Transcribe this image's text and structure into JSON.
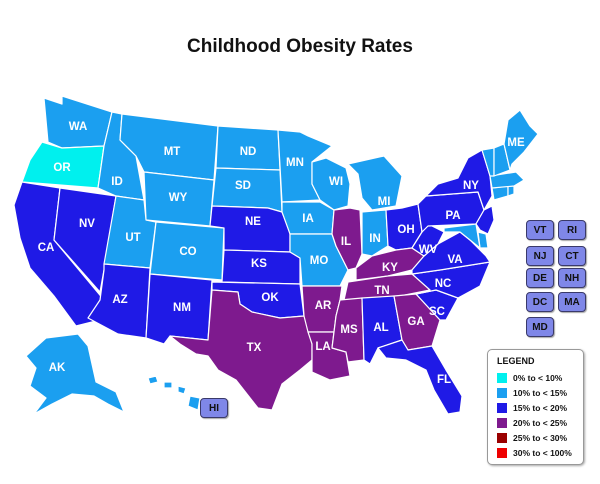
{
  "title": "Childhood Obesity Rates",
  "colors": {
    "c1": "#00f0ee",
    "c2": "#1b9ff0",
    "c3": "#1f1ae6",
    "c4": "#7e1a8e",
    "c5": "#9a0000",
    "c6": "#ee0000",
    "small_box": "#7f87e8"
  },
  "legend": {
    "title": "LEGEND",
    "items": [
      {
        "label": "0% to < 10%",
        "color": "#00f0ee"
      },
      {
        "label": "10% to < 15%",
        "color": "#1b9ff0"
      },
      {
        "label": "15% to < 20%",
        "color": "#1f1ae6"
      },
      {
        "label": "20% to < 25%",
        "color": "#7e1a8e"
      },
      {
        "label": "25% to < 30%",
        "color": "#9a0000"
      },
      {
        "label": "30% to < 100%",
        "color": "#ee0000"
      }
    ]
  },
  "states": {
    "WA": {
      "label": "WA",
      "bin": 2
    },
    "OR": {
      "label": "OR",
      "bin": 1
    },
    "CA": {
      "label": "CA",
      "bin": 3
    },
    "NV": {
      "label": "NV",
      "bin": 3
    },
    "ID": {
      "label": "ID",
      "bin": 2
    },
    "MT": {
      "label": "MT",
      "bin": 2
    },
    "WY": {
      "label": "WY",
      "bin": 2
    },
    "UT": {
      "label": "UT",
      "bin": 2
    },
    "CO": {
      "label": "CO",
      "bin": 2
    },
    "AZ": {
      "label": "AZ",
      "bin": 3
    },
    "NM": {
      "label": "NM",
      "bin": 3
    },
    "ND": {
      "label": "ND",
      "bin": 2
    },
    "SD": {
      "label": "SD",
      "bin": 2
    },
    "NE": {
      "label": "NE",
      "bin": 3
    },
    "KS": {
      "label": "KS",
      "bin": 3
    },
    "OK": {
      "label": "OK",
      "bin": 3
    },
    "TX": {
      "label": "TX",
      "bin": 4
    },
    "MN": {
      "label": "MN",
      "bin": 2
    },
    "IA": {
      "label": "IA",
      "bin": 2
    },
    "MO": {
      "label": "MO",
      "bin": 2
    },
    "AR": {
      "label": "AR",
      "bin": 4
    },
    "LA": {
      "label": "LA",
      "bin": 4
    },
    "WI": {
      "label": "WI",
      "bin": 2
    },
    "IL": {
      "label": "IL",
      "bin": 4
    },
    "MI": {
      "label": "MI",
      "bin": 2
    },
    "IN": {
      "label": "IN",
      "bin": 2
    },
    "OH": {
      "label": "OH",
      "bin": 3
    },
    "KY": {
      "label": "KY",
      "bin": 4
    },
    "TN": {
      "label": "TN",
      "bin": 4
    },
    "MS": {
      "label": "MS",
      "bin": 4
    },
    "AL": {
      "label": "AL",
      "bin": 3
    },
    "GA": {
      "label": "GA",
      "bin": 4
    },
    "FL": {
      "label": "FL",
      "bin": 3
    },
    "SC": {
      "label": "SC",
      "bin": 3
    },
    "NC": {
      "label": "NC",
      "bin": 3
    },
    "VA": {
      "label": "VA",
      "bin": 3
    },
    "WV": {
      "label": "WV",
      "bin": 3
    },
    "PA": {
      "label": "PA",
      "bin": 3
    },
    "NY": {
      "label": "NY",
      "bin": 3
    },
    "NJ": {
      "label": "",
      "bin": 3
    },
    "DE": {
      "label": "",
      "bin": 2
    },
    "MD": {
      "label": "",
      "bin": 2
    },
    "CT": {
      "label": "",
      "bin": 2
    },
    "RI": {
      "label": "",
      "bin": 2
    },
    "MA": {
      "label": "",
      "bin": 2
    },
    "VT": {
      "label": "",
      "bin": 2
    },
    "NH": {
      "label": "",
      "bin": 2
    },
    "ME": {
      "label": "ME",
      "bin": 2
    },
    "AK": {
      "label": "AK",
      "bin": 2
    },
    "HI": {
      "label": "",
      "bin": 2
    }
  },
  "small_state_buttons": [
    {
      "code": "VT"
    },
    {
      "code": "RI"
    },
    {
      "code": "NJ"
    },
    {
      "code": "CT"
    },
    {
      "code": "DE"
    },
    {
      "code": "NH"
    },
    {
      "code": "DC"
    },
    {
      "code": "MA"
    },
    {
      "code": "MD"
    },
    {
      "code": "HI"
    }
  ]
}
